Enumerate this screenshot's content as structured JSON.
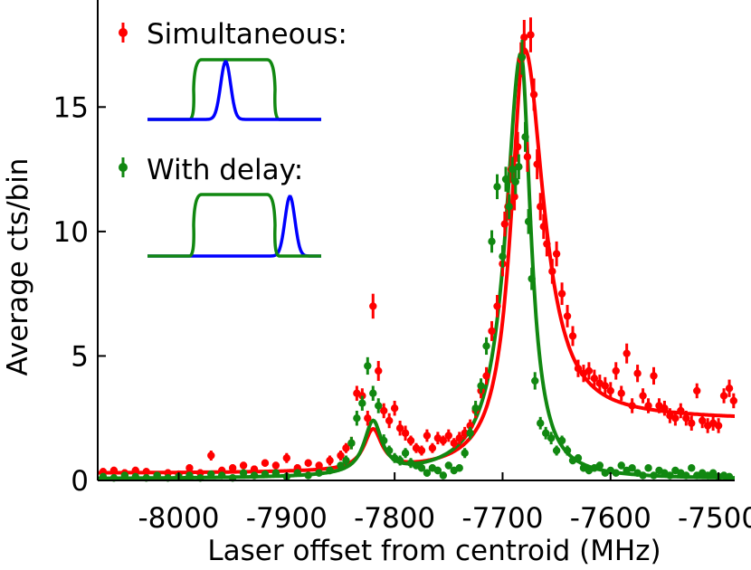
{
  "chart_data": {
    "type": "scatter",
    "title": "",
    "xlabel": "Laser offset from centroid (MHz)",
    "ylabel": "Average cts/bin",
    "xlim": [
      -8075,
      -7485
    ],
    "ylim": [
      0,
      19.3
    ],
    "xticks": [
      -8000,
      -7900,
      -7800,
      -7700,
      -7600,
      -7500
    ],
    "xtick_labels": [
      "-8000",
      "-7900",
      "-7800",
      "-7700",
      "-7600",
      "-7500"
    ],
    "yticks": [
      0,
      5,
      10,
      15
    ],
    "ytick_labels": [
      "0",
      "5",
      "10",
      "15"
    ],
    "grid": false,
    "legend_position": "top-left",
    "series": [
      {
        "name": "Simultaneous:",
        "color": "#ff0000",
        "points": [
          [
            -8070,
            0.35,
            0.15
          ],
          [
            -8060,
            0.4,
            0.15
          ],
          [
            -8050,
            0.3,
            0.15
          ],
          [
            -8040,
            0.4,
            0.15
          ],
          [
            -8030,
            0.35,
            0.15
          ],
          [
            -8020,
            0.2,
            0.15
          ],
          [
            -8010,
            0.3,
            0.15
          ],
          [
            -8000,
            0.25,
            0.15
          ],
          [
            -7990,
            0.5,
            0.15
          ],
          [
            -7980,
            0.3,
            0.15
          ],
          [
            -7970,
            1.0,
            0.2
          ],
          [
            -7960,
            0.4,
            0.15
          ],
          [
            -7950,
            0.5,
            0.15
          ],
          [
            -7940,
            0.6,
            0.15
          ],
          [
            -7930,
            0.45,
            0.15
          ],
          [
            -7920,
            0.7,
            0.15
          ],
          [
            -7910,
            0.6,
            0.15
          ],
          [
            -7900,
            0.9,
            0.2
          ],
          [
            -7890,
            0.5,
            0.15
          ],
          [
            -7880,
            0.7,
            0.15
          ],
          [
            -7870,
            0.6,
            0.15
          ],
          [
            -7860,
            0.8,
            0.2
          ],
          [
            -7850,
            1.0,
            0.2
          ],
          [
            -7845,
            1.3,
            0.2
          ],
          [
            -7840,
            1.5,
            0.25
          ],
          [
            -7835,
            3.5,
            0.3
          ],
          [
            -7830,
            3.4,
            0.3
          ],
          [
            -7825,
            2.5,
            0.3
          ],
          [
            -7820,
            7.0,
            0.5
          ],
          [
            -7815,
            4.4,
            0.4
          ],
          [
            -7810,
            2.8,
            0.3
          ],
          [
            -7805,
            2.4,
            0.3
          ],
          [
            -7800,
            2.9,
            0.3
          ],
          [
            -7795,
            2.1,
            0.3
          ],
          [
            -7790,
            1.9,
            0.3
          ],
          [
            -7785,
            1.6,
            0.2
          ],
          [
            -7780,
            1.3,
            0.2
          ],
          [
            -7775,
            1.2,
            0.2
          ],
          [
            -7770,
            1.8,
            0.25
          ],
          [
            -7765,
            1.3,
            0.2
          ],
          [
            -7760,
            1.7,
            0.25
          ],
          [
            -7755,
            1.6,
            0.2
          ],
          [
            -7750,
            1.8,
            0.25
          ],
          [
            -7745,
            1.5,
            0.2
          ],
          [
            -7740,
            1.7,
            0.25
          ],
          [
            -7735,
            1.9,
            0.25
          ],
          [
            -7730,
            2.2,
            0.25
          ],
          [
            -7725,
            2.8,
            0.3
          ],
          [
            -7720,
            3.6,
            0.3
          ],
          [
            -7715,
            4.2,
            0.35
          ],
          [
            -7710,
            6.0,
            0.4
          ],
          [
            -7705,
            7.0,
            0.45
          ],
          [
            -7700,
            8.7,
            0.5
          ],
          [
            -7698,
            10.3,
            0.5
          ],
          [
            -7695,
            11.0,
            0.55
          ],
          [
            -7692,
            12.5,
            0.55
          ],
          [
            -7689,
            11.4,
            0.55
          ],
          [
            -7686,
            13.4,
            0.6
          ],
          [
            -7683,
            16.9,
            0.7
          ],
          [
            -7680,
            17.8,
            0.7
          ],
          [
            -7677,
            13.0,
            0.6
          ],
          [
            -7674,
            17.9,
            0.7
          ],
          [
            -7671,
            15.5,
            0.65
          ],
          [
            -7668,
            12.7,
            0.6
          ],
          [
            -7665,
            11.0,
            0.55
          ],
          [
            -7662,
            10.2,
            0.5
          ],
          [
            -7659,
            9.5,
            0.5
          ],
          [
            -7654,
            8.4,
            0.5
          ],
          [
            -7650,
            9.1,
            0.5
          ],
          [
            -7645,
            7.5,
            0.45
          ],
          [
            -7640,
            6.6,
            0.45
          ],
          [
            -7635,
            5.8,
            0.4
          ],
          [
            -7630,
            4.5,
            0.35
          ],
          [
            -7625,
            4.3,
            0.35
          ],
          [
            -7620,
            4.4,
            0.35
          ],
          [
            -7615,
            4.1,
            0.35
          ],
          [
            -7610,
            3.9,
            0.35
          ],
          [
            -7605,
            3.8,
            0.35
          ],
          [
            -7600,
            3.6,
            0.35
          ],
          [
            -7595,
            4.4,
            0.35
          ],
          [
            -7590,
            3.5,
            0.3
          ],
          [
            -7585,
            5.1,
            0.4
          ],
          [
            -7580,
            3.0,
            0.3
          ],
          [
            -7575,
            4.3,
            0.35
          ],
          [
            -7570,
            3.4,
            0.3
          ],
          [
            -7565,
            3.0,
            0.3
          ],
          [
            -7560,
            4.2,
            0.35
          ],
          [
            -7555,
            3.0,
            0.3
          ],
          [
            -7550,
            2.9,
            0.3
          ],
          [
            -7545,
            2.6,
            0.3
          ],
          [
            -7540,
            2.5,
            0.3
          ],
          [
            -7535,
            2.8,
            0.3
          ],
          [
            -7530,
            2.5,
            0.3
          ],
          [
            -7525,
            2.3,
            0.3
          ],
          [
            -7520,
            3.6,
            0.3
          ],
          [
            -7515,
            2.4,
            0.3
          ],
          [
            -7510,
            2.2,
            0.3
          ],
          [
            -7505,
            2.3,
            0.3
          ],
          [
            -7500,
            2.2,
            0.3
          ],
          [
            -7495,
            3.4,
            0.3
          ],
          [
            -7490,
            3.7,
            0.35
          ],
          [
            -7486,
            3.2,
            0.3
          ]
        ],
        "fit": {
          "baseline": 0.28,
          "peaks": [
            {
              "x0": -7680,
              "amp": 17.0,
              "hwhm_left": 15,
              "hwhm_right": 22
            },
            {
              "x0": -7820,
              "amp": 1.6,
              "hwhm_left": 10,
              "hwhm_right": 10
            }
          ],
          "tail": {
            "amp": 2.1,
            "x0": -7680,
            "width": 700
          }
        }
      },
      {
        "name": "With delay:",
        "color": "#118811",
        "points": [
          [
            -8070,
            0.15,
            0.1
          ],
          [
            -8060,
            0.1,
            0.1
          ],
          [
            -8050,
            0.2,
            0.1
          ],
          [
            -8040,
            0.15,
            0.1
          ],
          [
            -8030,
            0.1,
            0.1
          ],
          [
            -8020,
            0.2,
            0.1
          ],
          [
            -8010,
            0.1,
            0.1
          ],
          [
            -8000,
            0.15,
            0.1
          ],
          [
            -7990,
            0.2,
            0.1
          ],
          [
            -7980,
            0.1,
            0.1
          ],
          [
            -7970,
            0.25,
            0.1
          ],
          [
            -7960,
            0.2,
            0.1
          ],
          [
            -7950,
            0.1,
            0.1
          ],
          [
            -7940,
            0.3,
            0.1
          ],
          [
            -7930,
            0.2,
            0.1
          ],
          [
            -7920,
            0.25,
            0.1
          ],
          [
            -7910,
            0.3,
            0.1
          ],
          [
            -7900,
            0.15,
            0.1
          ],
          [
            -7890,
            0.3,
            0.1
          ],
          [
            -7880,
            0.2,
            0.1
          ],
          [
            -7870,
            0.3,
            0.1
          ],
          [
            -7860,
            0.4,
            0.15
          ],
          [
            -7850,
            0.6,
            0.15
          ],
          [
            -7845,
            0.8,
            0.2
          ],
          [
            -7840,
            1.5,
            0.25
          ],
          [
            -7835,
            2.5,
            0.3
          ],
          [
            -7830,
            3.1,
            0.3
          ],
          [
            -7825,
            4.6,
            0.35
          ],
          [
            -7820,
            3.5,
            0.3
          ],
          [
            -7815,
            3.0,
            0.3
          ],
          [
            -7810,
            1.6,
            0.25
          ],
          [
            -7805,
            1.2,
            0.2
          ],
          [
            -7800,
            0.9,
            0.2
          ],
          [
            -7795,
            0.8,
            0.2
          ],
          [
            -7790,
            1.1,
            0.2
          ],
          [
            -7785,
            0.7,
            0.2
          ],
          [
            -7780,
            0.6,
            0.15
          ],
          [
            -7775,
            0.5,
            0.15
          ],
          [
            -7770,
            0.3,
            0.15
          ],
          [
            -7765,
            0.5,
            0.15
          ],
          [
            -7760,
            0.4,
            0.15
          ],
          [
            -7755,
            0.2,
            0.15
          ],
          [
            -7750,
            0.6,
            0.15
          ],
          [
            -7745,
            0.4,
            0.15
          ],
          [
            -7740,
            0.5,
            0.15
          ],
          [
            -7735,
            1.1,
            0.2
          ],
          [
            -7730,
            1.9,
            0.25
          ],
          [
            -7725,
            2.9,
            0.3
          ],
          [
            -7720,
            3.8,
            0.3
          ],
          [
            -7715,
            5.4,
            0.35
          ],
          [
            -7710,
            9.6,
            0.45
          ],
          [
            -7705,
            11.8,
            0.5
          ],
          [
            -7700,
            9.0,
            0.45
          ],
          [
            -7697,
            12.1,
            0.5
          ],
          [
            -7694,
            11.0,
            0.5
          ],
          [
            -7691,
            12.5,
            0.5
          ],
          [
            -7688,
            12.0,
            0.5
          ],
          [
            -7685,
            12.6,
            0.5
          ],
          [
            -7682,
            17.0,
            0.7
          ],
          [
            -7679,
            13.8,
            0.6
          ],
          [
            -7676,
            10.4,
            0.5
          ],
          [
            -7673,
            8.1,
            0.45
          ],
          [
            -7670,
            4.0,
            0.35
          ],
          [
            -7665,
            2.3,
            0.25
          ],
          [
            -7660,
            1.9,
            0.25
          ],
          [
            -7655,
            1.7,
            0.25
          ],
          [
            -7650,
            1.2,
            0.2
          ],
          [
            -7645,
            1.6,
            0.2
          ],
          [
            -7640,
            1.2,
            0.2
          ],
          [
            -7635,
            0.8,
            0.15
          ],
          [
            -7630,
            0.9,
            0.15
          ],
          [
            -7625,
            0.5,
            0.15
          ],
          [
            -7620,
            0.4,
            0.15
          ],
          [
            -7615,
            0.5,
            0.15
          ],
          [
            -7610,
            0.6,
            0.15
          ],
          [
            -7605,
            0.3,
            0.1
          ],
          [
            -7600,
            0.4,
            0.1
          ],
          [
            -7595,
            0.3,
            0.1
          ],
          [
            -7590,
            0.6,
            0.15
          ],
          [
            -7585,
            0.4,
            0.1
          ],
          [
            -7580,
            0.5,
            0.1
          ],
          [
            -7575,
            0.3,
            0.1
          ],
          [
            -7570,
            0.2,
            0.1
          ],
          [
            -7565,
            0.5,
            0.1
          ],
          [
            -7560,
            0.2,
            0.1
          ],
          [
            -7555,
            0.4,
            0.1
          ],
          [
            -7550,
            0.3,
            0.1
          ],
          [
            -7545,
            0.2,
            0.1
          ],
          [
            -7540,
            0.4,
            0.1
          ],
          [
            -7535,
            0.3,
            0.1
          ],
          [
            -7530,
            0.2,
            0.1
          ],
          [
            -7525,
            0.5,
            0.1
          ],
          [
            -7520,
            0.2,
            0.1
          ],
          [
            -7515,
            0.3,
            0.1
          ],
          [
            -7510,
            0.2,
            0.1
          ],
          [
            -7505,
            0.3,
            0.1
          ],
          [
            -7500,
            0.15,
            0.1
          ],
          [
            -7495,
            0.2,
            0.1
          ],
          [
            -7490,
            0.15,
            0.1
          ]
        ],
        "fit": {
          "baseline": 0.05,
          "peaks": [
            {
              "x0": -7683,
              "amp": 17.1,
              "hwhm_left": 17,
              "hwhm_right": 11
            },
            {
              "x0": -7820,
              "amp": 2.1,
              "hwhm_left": 10,
              "hwhm_right": 10
            }
          ],
          "tail": {
            "amp": 0.0,
            "x0": -7683,
            "width": 1
          }
        }
      }
    ],
    "insets": [
      {
        "name": "Simultaneous:",
        "trapezoid_color": "#118811",
        "pulse_color": "#0000ff",
        "pulse_position": 0.45
      },
      {
        "name": "With delay:",
        "trapezoid_color": "#118811",
        "pulse_color": "#0000ff",
        "pulse_position": 0.82
      }
    ]
  }
}
